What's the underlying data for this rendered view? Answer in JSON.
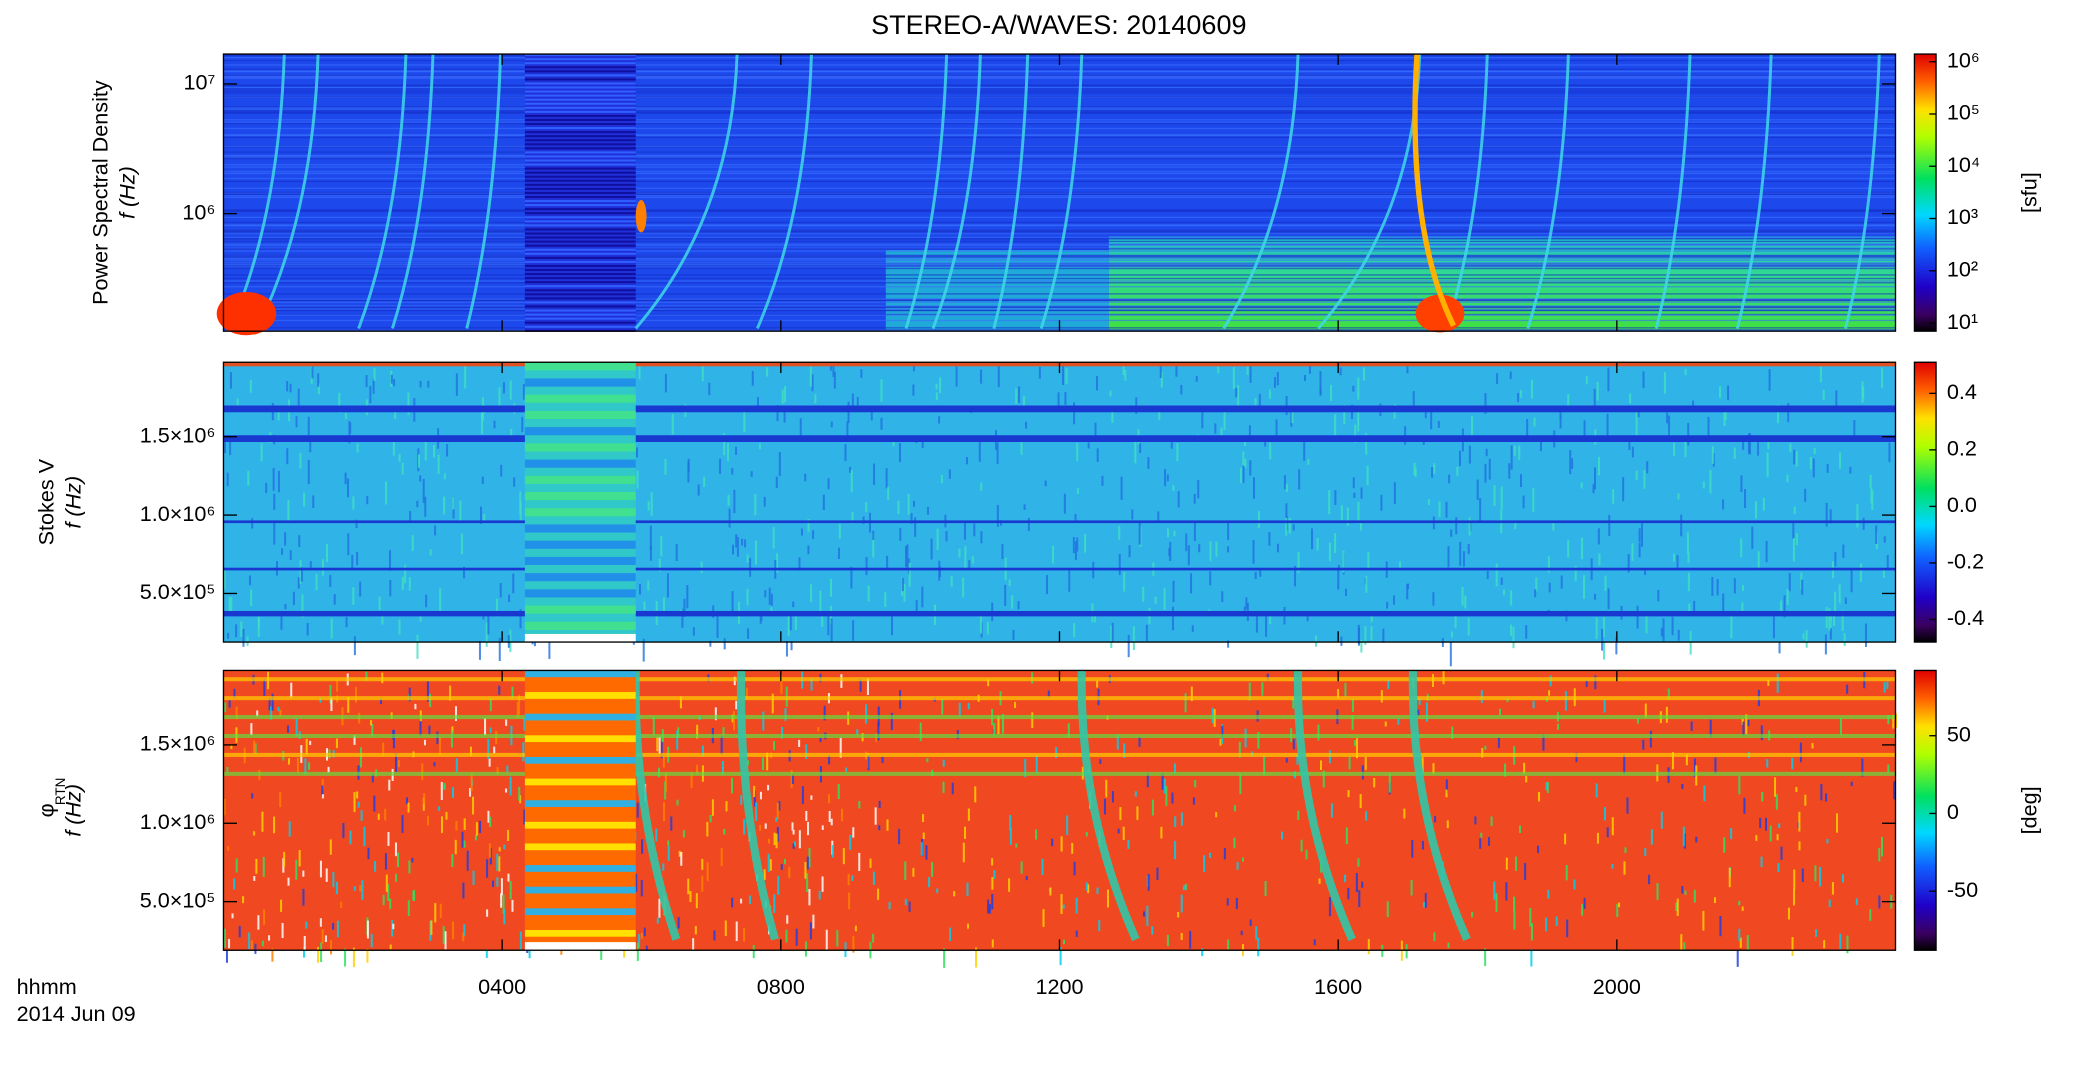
{
  "chart_data": [
    {
      "type": "heatmap",
      "title": "STEREO-A/WAVES: 20140609",
      "y_label": "Power Spectral Density",
      "y_unit_label": "f (Hz)",
      "log_y": true,
      "ylim": [
        124000,
        17000000
      ],
      "yticks": [
        {
          "value": 1000000,
          "label": "10⁶"
        },
        {
          "value": 10000000,
          "label": "10⁷"
        }
      ],
      "colorbar_label": "[sfu]",
      "colorbar_log": true,
      "clim": [
        7,
        1400000
      ],
      "cticks": [
        {
          "value": 10,
          "label": "10¹"
        },
        {
          "value": 100,
          "label": "10²"
        },
        {
          "value": 1000,
          "label": "10³"
        },
        {
          "value": 10000,
          "label": "10⁴"
        },
        {
          "value": 100000,
          "label": "10⁵"
        },
        {
          "value": 1000000,
          "label": "10⁶"
        }
      ]
    },
    {
      "type": "heatmap",
      "y_label": "Stokes V",
      "y_unit_label": "f (Hz)",
      "log_y": false,
      "ylim": [
        190000,
        1975000
      ],
      "yticks": [
        {
          "value": 500000,
          "label": "5.0×10⁵"
        },
        {
          "value": 1000000,
          "label": "1.0×10⁶"
        },
        {
          "value": 1500000,
          "label": "1.5×10⁶"
        }
      ],
      "colorbar_log": false,
      "clim": [
        -0.48,
        0.51
      ],
      "cticks": [
        -0.4,
        -0.2,
        {
          "value": 0,
          "label": "0.0"
        },
        0.2,
        0.4
      ]
    },
    {
      "type": "heatmap",
      "y_label": "φ",
      "y_label_sub": "RTN",
      "y_unit_label": "f (Hz)",
      "log_y": false,
      "ylim": [
        190000,
        1975000
      ],
      "yticks": [
        {
          "value": 500000,
          "label": "5.0×10⁵"
        },
        {
          "value": 1000000,
          "label": "1.0×10⁶"
        },
        {
          "value": 1500000,
          "label": "1.5×10⁶"
        }
      ],
      "colorbar_label": "[deg]",
      "colorbar_log": false,
      "clim": [
        -88,
        92
      ],
      "cticks": [
        -50,
        0,
        50
      ],
      "xlim": [
        0,
        1440
      ],
      "xticks": [
        {
          "value": 240,
          "label": "0400"
        },
        {
          "value": 480,
          "label": "0800"
        },
        {
          "value": 720,
          "label": "1200"
        },
        {
          "value": 960,
          "label": "1600"
        },
        {
          "value": 1200,
          "label": "2000"
        }
      ],
      "x_label": "hhmm",
      "date_label": "2014 Jun 09"
    }
  ]
}
